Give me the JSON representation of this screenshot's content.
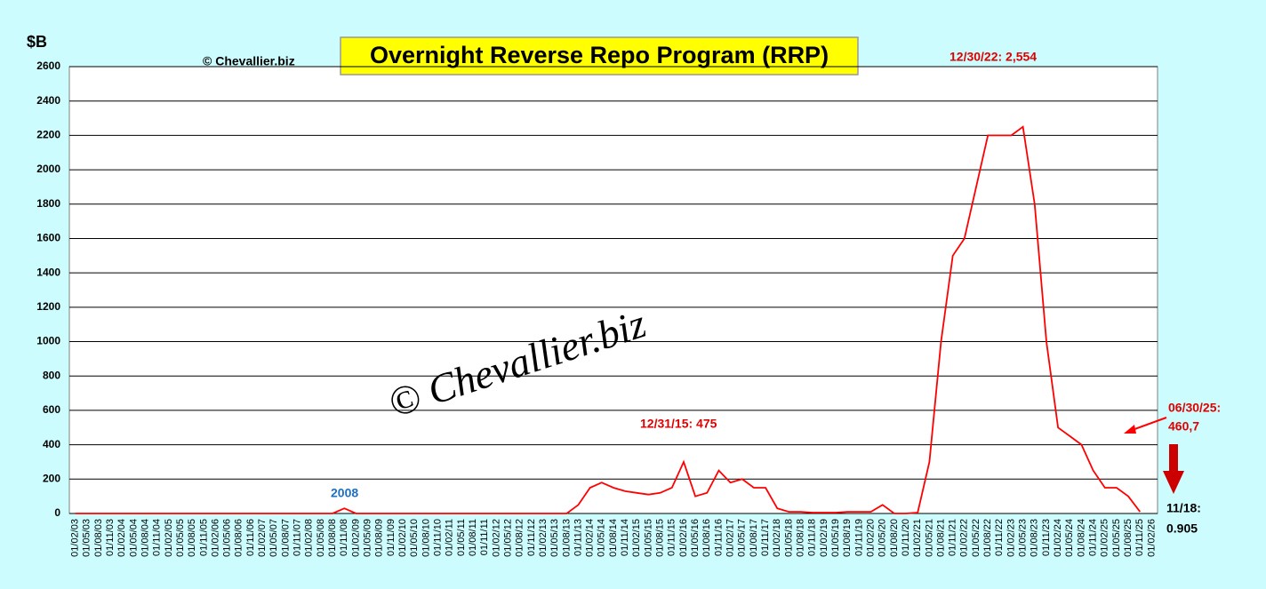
{
  "chart_data": {
    "type": "line",
    "title": "Overnight Reverse Repo Program (RRP)",
    "y_label": "$B",
    "annotations": [
      "© Chevallier.biz",
      "12/30/22: 2,554",
      "12/31/15: 475",
      "2008",
      "06/30/25:",
      "460,7",
      "11/18:",
      "0.905",
      "© Chevallier.biz"
    ],
    "categories": [
      "01/02/03",
      "01/05/03",
      "01/08/03",
      "01/11/03",
      "01/02/04",
      "01/05/04",
      "01/08/04",
      "01/11/04",
      "01/02/05",
      "01/05/05",
      "01/08/05",
      "01/11/05",
      "01/02/06",
      "01/05/06",
      "01/08/06",
      "01/11/06",
      "01/02/07",
      "01/05/07",
      "01/08/07",
      "01/11/07",
      "01/02/08",
      "01/05/08",
      "01/08/08",
      "01/11/08",
      "01/02/09",
      "01/05/09",
      "01/08/09",
      "01/11/09",
      "01/02/10",
      "01/05/10",
      "01/08/10",
      "01/11/10",
      "01/02/11",
      "01/05/11",
      "01/08/11",
      "01/11/11",
      "01/02/12",
      "01/05/12",
      "01/08/12",
      "01/11/12",
      "01/02/13",
      "01/05/13",
      "01/08/13",
      "01/11/13",
      "01/02/14",
      "01/05/14",
      "01/08/14",
      "01/11/14",
      "01/02/15",
      "01/05/15",
      "01/08/15",
      "01/11/15",
      "01/02/16",
      "01/05/16",
      "01/08/16",
      "01/11/16",
      "01/02/17",
      "01/05/17",
      "01/08/17",
      "01/11/17",
      "01/02/18",
      "01/05/18",
      "01/08/18",
      "01/11/18",
      "01/02/19",
      "01/05/19",
      "01/08/19",
      "01/11/19",
      "01/02/20",
      "01/05/20",
      "01/08/20",
      "01/11/20",
      "01/02/21",
      "01/05/21",
      "01/08/21",
      "01/11/21",
      "01/02/22",
      "01/05/22",
      "01/08/22",
      "01/11/22",
      "01/02/23",
      "01/05/23",
      "01/08/23",
      "01/11/23",
      "01/02/24",
      "01/05/24",
      "01/08/24",
      "01/11/24",
      "01/02/25",
      "01/05/25",
      "01/08/25",
      "01/11/25",
      "01/02/26"
    ],
    "series": [
      {
        "name": "RRP",
        "color": "#ff0000",
        "values": [
          0,
          0,
          0,
          0,
          0,
          0,
          0,
          0,
          0,
          0,
          0,
          0,
          0,
          0,
          0,
          0,
          0,
          0,
          0,
          0,
          0,
          0,
          0,
          30,
          0,
          0,
          0,
          0,
          0,
          0,
          0,
          0,
          0,
          0,
          0,
          0,
          0,
          0,
          0,
          0,
          0,
          0,
          0,
          50,
          150,
          180,
          150,
          130,
          120,
          110,
          120,
          150,
          300,
          100,
          120,
          250,
          180,
          200,
          150,
          150,
          30,
          10,
          10,
          5,
          5,
          5,
          10,
          10,
          10,
          50,
          0,
          0,
          5,
          300,
          1000,
          1500,
          1600,
          1900,
          2200,
          2200,
          2200,
          2250,
          1800,
          1000,
          500,
          450,
          400,
          250,
          150,
          150,
          100,
          10,
          null
        ]
      }
    ],
    "ylim": [
      0,
      2600
    ],
    "yticks": [
      0,
      200,
      400,
      600,
      800,
      1000,
      1200,
      1400,
      1600,
      1800,
      2000,
      2200,
      2400,
      2600
    ],
    "grid": true
  }
}
